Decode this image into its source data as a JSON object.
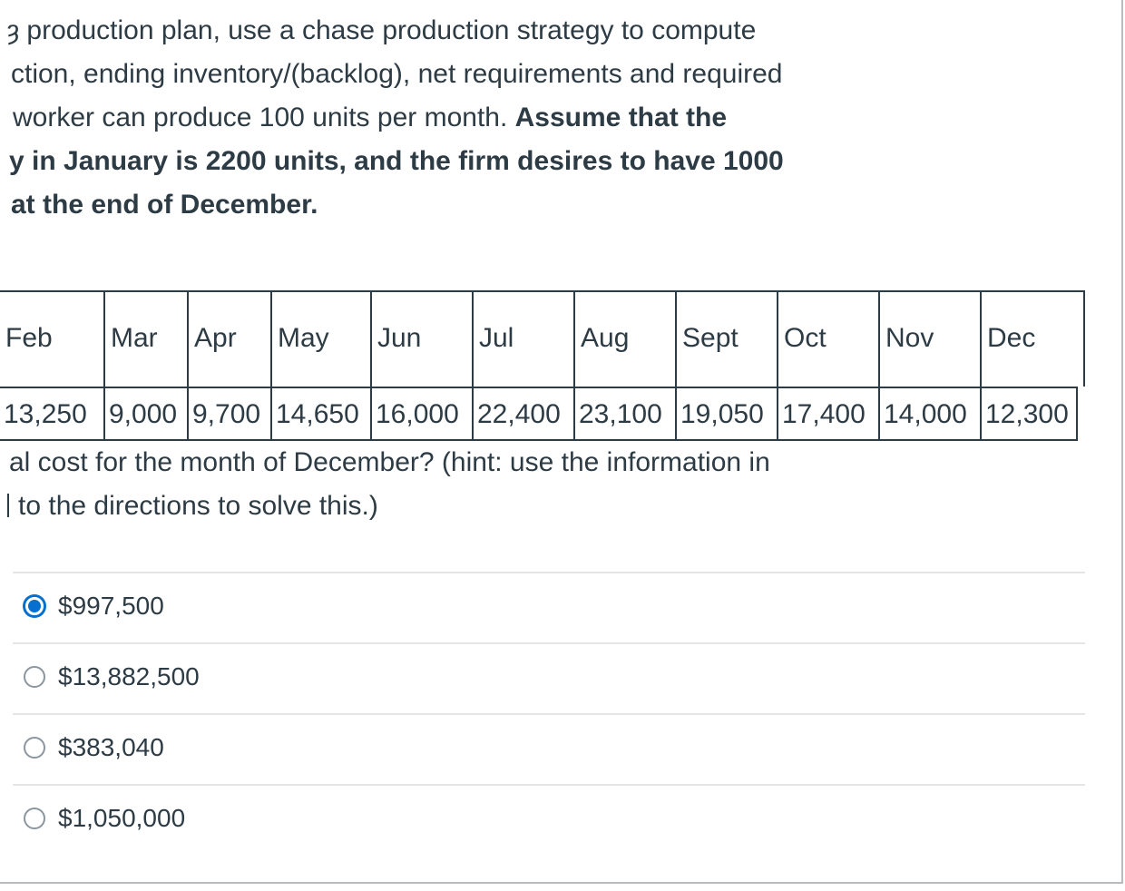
{
  "intro": {
    "lines": [
      {
        "text": "ȝ production plan, use a chase production strategy to compute",
        "bold": false
      },
      {
        "text": "ction, ending inventory/(backlog), net requirements and required",
        "bold": false
      },
      {
        "text_plain": "worker can produce 100 units per month. ",
        "text_bold": "Assume that the"
      },
      {
        "text": "y in January is 2200 units, and the firm desires to have 1000",
        "bold": true
      },
      {
        "text": "at the end of December.",
        "bold": true
      }
    ]
  },
  "table": {
    "months": [
      "Feb",
      "Mar",
      "Apr",
      "May",
      "Jun",
      "Jul",
      "Aug",
      "Sept",
      "Oct",
      "Nov",
      "Dec"
    ],
    "values": [
      "13,250",
      "9,000",
      "9,700",
      "14,650",
      "16,000",
      "22,400",
      "23,100",
      "19,050",
      "17,400",
      "14,000",
      "12,300"
    ]
  },
  "question": {
    "lines": [
      "al cost for the month of December? (hint:  use the information in",
      "to the directions to solve this.)"
    ]
  },
  "answers": {
    "options": [
      {
        "label": "$997,500",
        "selected": true
      },
      {
        "label": "$13,882,500",
        "selected": false
      },
      {
        "label": "$383,040",
        "selected": false
      },
      {
        "label": "$1,050,000",
        "selected": false
      }
    ]
  },
  "colors": {
    "text": "#2d3b45",
    "selected_radio": "#0770cf",
    "divider": "#e3e5e6"
  }
}
